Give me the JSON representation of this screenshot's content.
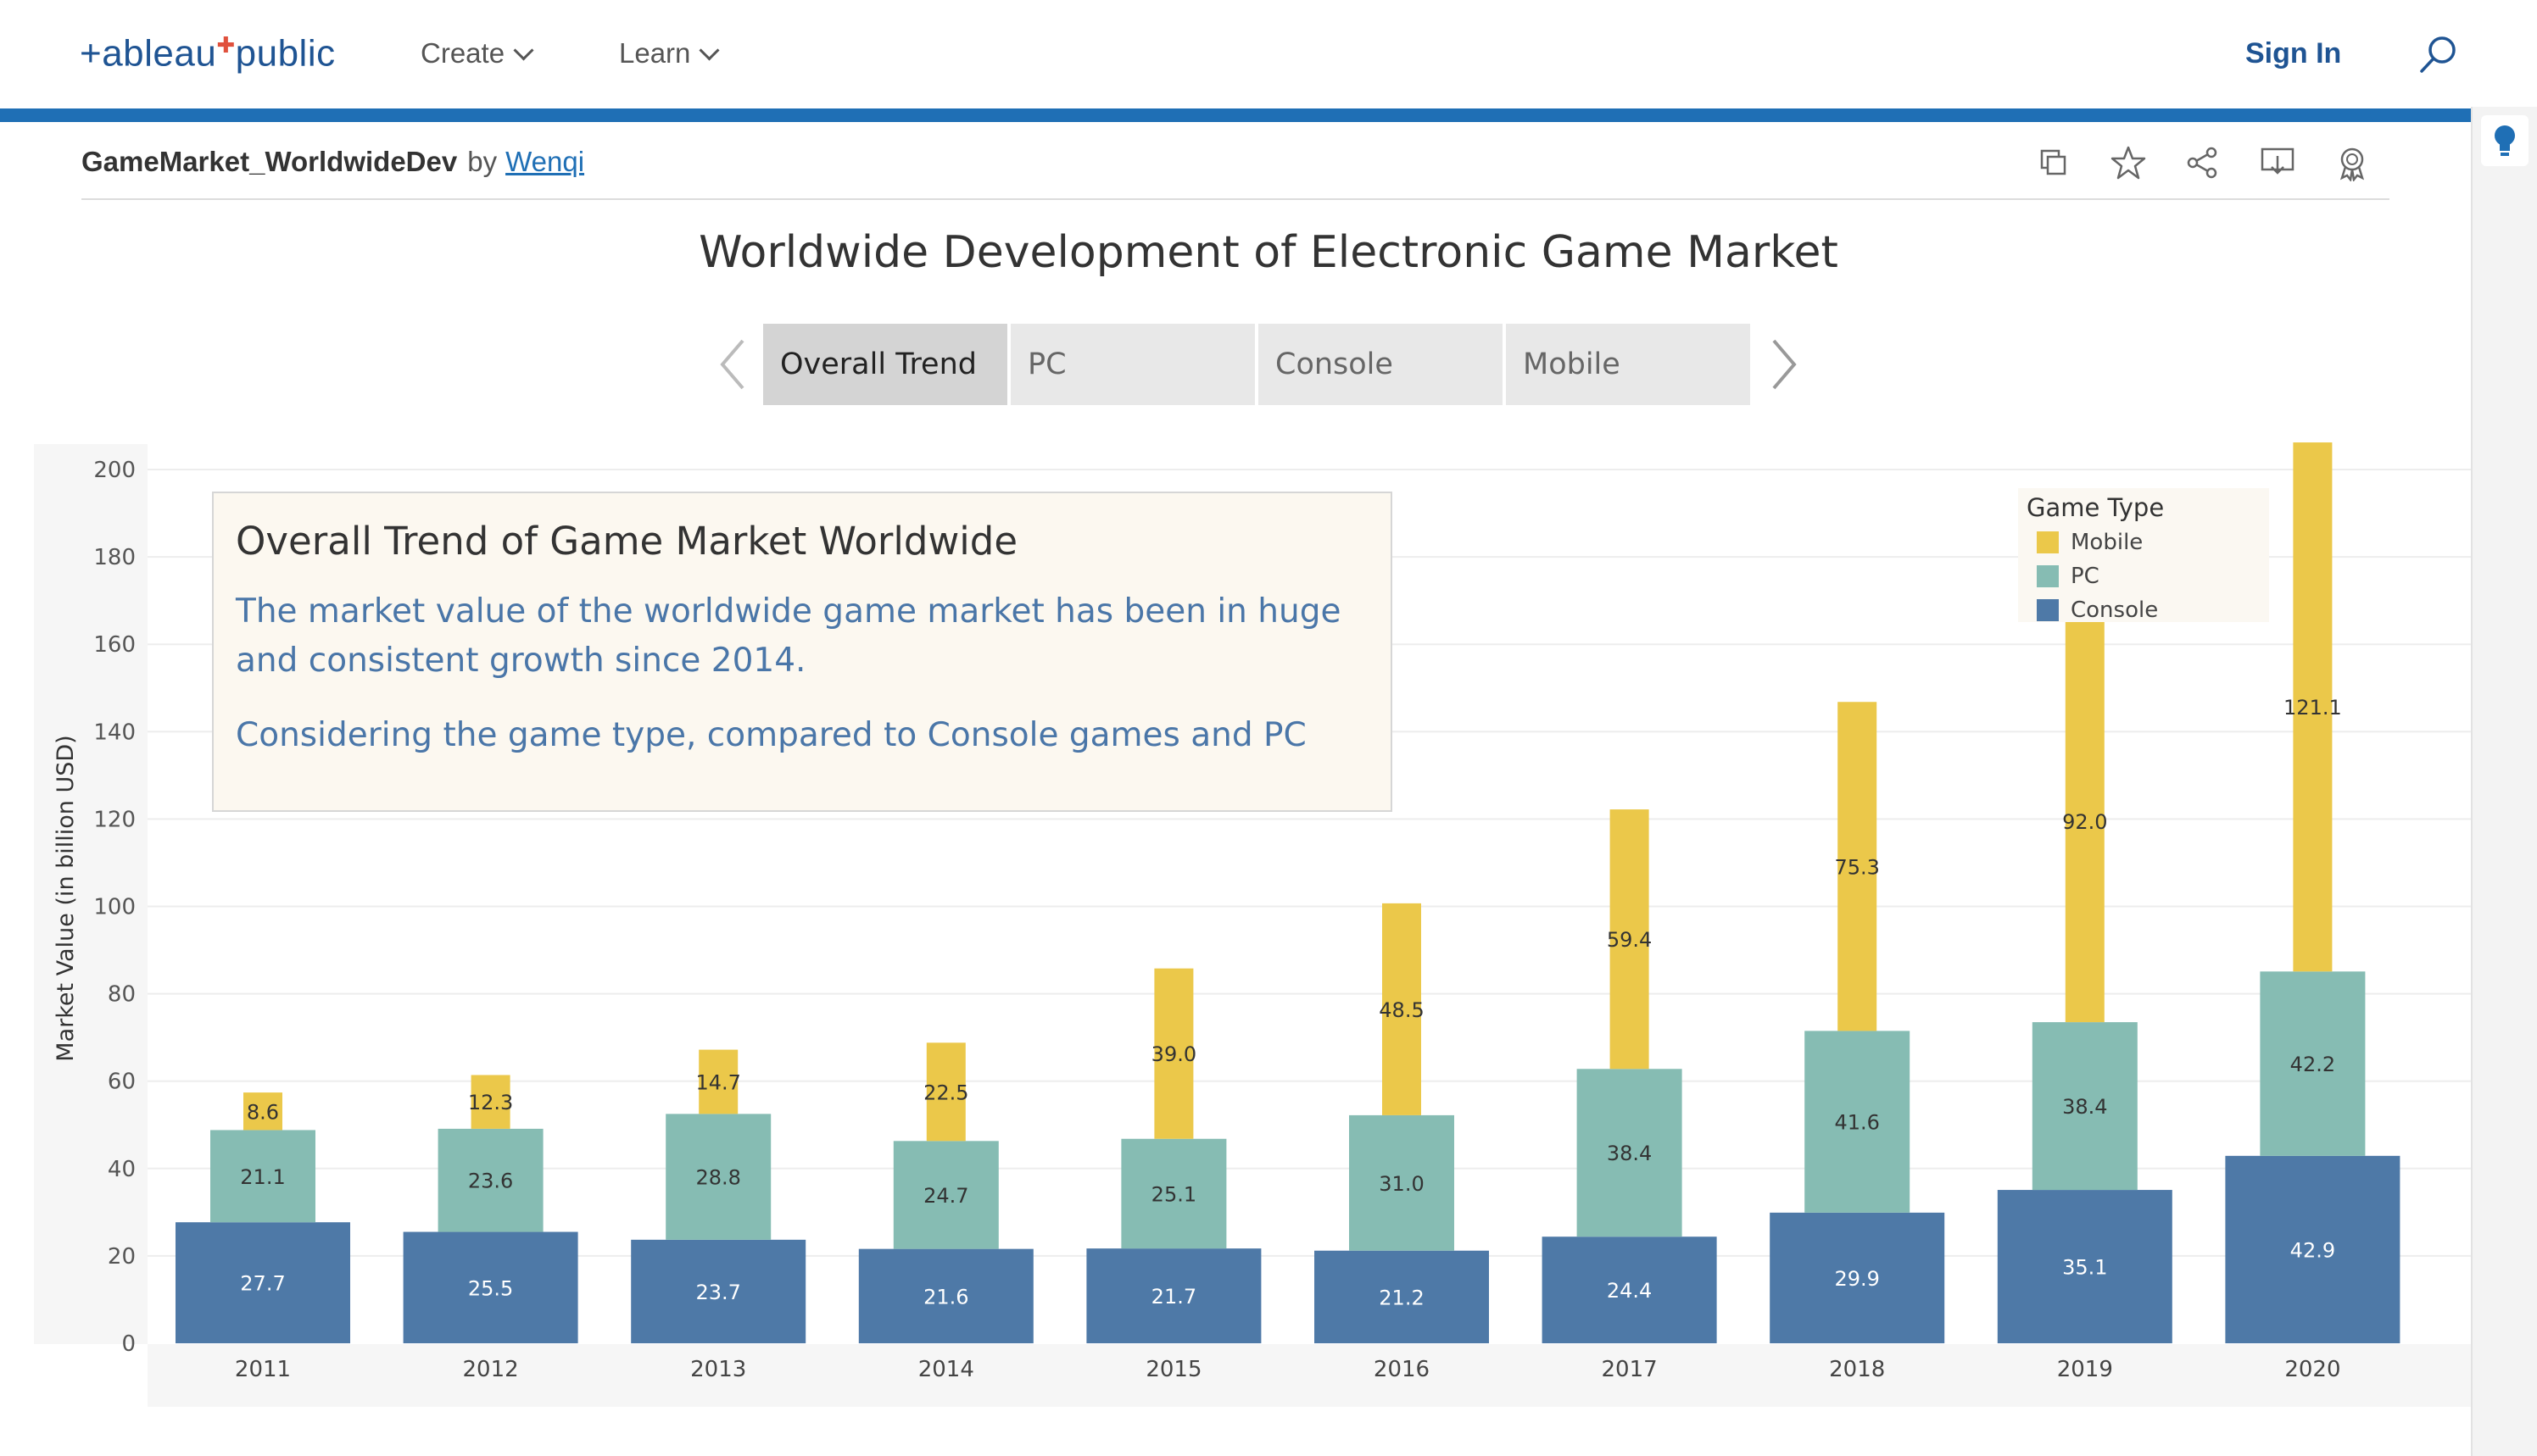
{
  "nav": {
    "logo": "+ableau",
    "logo_suffix": "public",
    "create": "Create",
    "learn": "Learn",
    "sign_in": "Sign In"
  },
  "viz": {
    "name": "GameMarket_WorldwideDev",
    "by": "by",
    "author": "Wenqi"
  },
  "dashboard": {
    "title": "Worldwide Development of Electronic Game Market",
    "tabs": [
      {
        "label": "Overall Trend",
        "active": true
      },
      {
        "label": "PC",
        "active": false
      },
      {
        "label": "Console",
        "active": false
      },
      {
        "label": "Mobile",
        "active": false
      }
    ]
  },
  "info": {
    "title": "Overall Trend of Game Market Worldwide",
    "p1": "The market value of the worldwide game market has been in huge and consistent growth since 2014.",
    "p2": "Considering the game type, compared to Console games and PC"
  },
  "legend": {
    "title": "Game Type",
    "items": [
      {
        "label": "Mobile",
        "color": "#ebc84a"
      },
      {
        "label": "PC",
        "color": "#86bcb3"
      },
      {
        "label": "Console",
        "color": "#4e79a7"
      }
    ]
  },
  "chart_data": {
    "type": "bar",
    "stacked": true,
    "ylabel": "Market Value (in billion USD)",
    "ylim": [
      0,
      200
    ],
    "yticks": [
      0,
      20,
      40,
      60,
      80,
      100,
      120,
      140,
      160,
      180,
      200
    ],
    "categories": [
      "2011",
      "2012",
      "2013",
      "2014",
      "2015",
      "2016",
      "2017",
      "2018",
      "2019",
      "2020"
    ],
    "series": [
      {
        "name": "Console",
        "color": "#4e79a7",
        "values": [
          27.7,
          25.5,
          23.7,
          21.6,
          21.7,
          21.2,
          24.4,
          29.9,
          35.1,
          42.9
        ]
      },
      {
        "name": "PC",
        "color": "#86bcb3",
        "values": [
          21.1,
          23.6,
          28.8,
          24.7,
          25.1,
          31.0,
          38.4,
          41.6,
          38.4,
          42.2
        ]
      },
      {
        "name": "Mobile",
        "color": "#ebc84a",
        "values": [
          8.6,
          12.3,
          14.7,
          22.5,
          39.0,
          48.5,
          59.4,
          75.3,
          92.0,
          121.1
        ]
      }
    ],
    "grid": true,
    "legend_position": "top-right"
  }
}
